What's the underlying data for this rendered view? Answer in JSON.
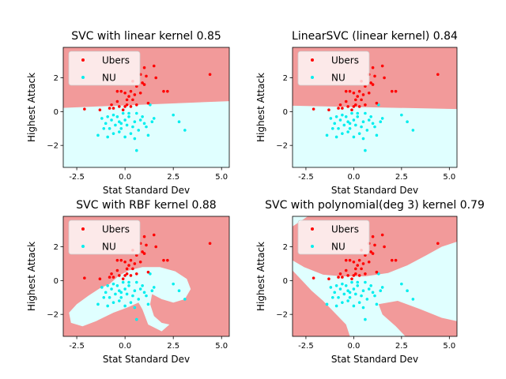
{
  "colors": {
    "ubers_region": "#f29a9a",
    "nu_region": "#e0ffff",
    "ubers_point": "#ff0000",
    "nu_point": "#00eeee"
  },
  "chart_data": [
    {
      "type": "scatter",
      "title": "SVC with linear kernel 0.85",
      "xlabel": "Stat Standard Dev",
      "ylabel": "Highest Attack",
      "xlim": [
        -3.2,
        5.4
      ],
      "ylim": [
        -3.3,
        3.8
      ],
      "xticks": [
        -2.5,
        0.0,
        2.5,
        5.0
      ],
      "yticks": [
        -2,
        0,
        2
      ],
      "legend": [
        "Ubers",
        "NU"
      ],
      "boundary": {
        "kind": "line",
        "y_at_xmin": 0.22,
        "y_at_xmax": 0.62
      }
    },
    {
      "type": "scatter",
      "title": "LinearSVC (linear kernel) 0.84",
      "xlabel": "Stat Standard Dev",
      "ylabel": "Highest Attack",
      "xlim": [
        -3.2,
        5.4
      ],
      "ylim": [
        -3.3,
        3.8
      ],
      "xticks": [
        -2.5,
        0.0,
        2.5,
        5.0
      ],
      "yticks": [
        -2,
        0,
        2
      ],
      "legend": [
        "Ubers",
        "NU"
      ],
      "boundary": {
        "kind": "line",
        "y_at_xmin": 0.35,
        "y_at_xmax": 0.15
      }
    },
    {
      "type": "scatter",
      "title": "SVC with RBF kernel 0.88",
      "xlabel": "Stat Standard Dev",
      "ylabel": "Highest Attack",
      "xlim": [
        -3.2,
        5.4
      ],
      "ylim": [
        -3.3,
        3.8
      ],
      "xticks": [
        -2.5,
        0.0,
        2.5,
        5.0
      ],
      "yticks": [
        -2,
        0,
        2
      ],
      "legend": [
        "Ubers",
        "NU"
      ],
      "boundary": {
        "kind": "rbf"
      }
    },
    {
      "type": "scatter",
      "title": "SVC with polynomial(deg 3) kernel 0.79",
      "xlabel": "Stat Standard Dev",
      "ylabel": "Highest Attack",
      "xlim": [
        -3.2,
        5.4
      ],
      "ylim": [
        -3.3,
        3.8
      ],
      "xticks": [
        -2.5,
        0.0,
        2.5,
        5.0
      ],
      "yticks": [
        -2,
        0,
        2
      ],
      "legend": [
        "Ubers",
        "NU"
      ],
      "boundary": {
        "kind": "poly"
      }
    }
  ],
  "points": {
    "Ubers": [
      [
        4.4,
        2.2
      ],
      [
        1.0,
        2.6
      ],
      [
        1.5,
        2.7
      ],
      [
        0.8,
        2.2
      ],
      [
        1.6,
        2.0
      ],
      [
        0.4,
        1.8
      ],
      [
        2.0,
        1.2
      ],
      [
        2.2,
        1.2
      ],
      [
        1.0,
        1.6
      ],
      [
        -0.4,
        1.2
      ],
      [
        0.0,
        1.1
      ],
      [
        0.3,
        1.2
      ],
      [
        -0.2,
        1.2
      ],
      [
        0.8,
        1.1
      ],
      [
        0.6,
        1.5
      ],
      [
        -1.3,
        0.1
      ],
      [
        -2.1,
        0.15
      ],
      [
        -0.4,
        0.6
      ],
      [
        0.1,
        0.7
      ],
      [
        0.3,
        0.3
      ],
      [
        0.6,
        0.4
      ],
      [
        -0.6,
        0.2
      ],
      [
        -0.1,
        0.1
      ],
      [
        0.9,
        1.7
      ],
      [
        1.2,
        0.5
      ],
      [
        0.2,
        0.9
      ],
      [
        -0.3,
        0.3
      ],
      [
        0.5,
        1.0
      ],
      [
        0.1,
        0.4
      ],
      [
        0.4,
        0.7
      ],
      [
        -0.7,
        0.4
      ],
      [
        1.1,
        2.1
      ],
      [
        -0.8,
        0.2
      ],
      [
        0.0,
        0.3
      ]
    ],
    "NU": [
      [
        3.1,
        -1.1
      ],
      [
        2.5,
        -0.2
      ],
      [
        2.8,
        -0.6
      ],
      [
        1.5,
        -0.4
      ],
      [
        1.3,
        0.4
      ],
      [
        0.6,
        -2.3
      ],
      [
        0.0,
        -1.5
      ],
      [
        -1.4,
        -1.4
      ],
      [
        -0.9,
        -1.5
      ],
      [
        0.3,
        -1.3
      ],
      [
        1.1,
        -0.9
      ],
      [
        1.0,
        -0.7
      ],
      [
        0.9,
        -0.3
      ],
      [
        0.5,
        -0.6
      ],
      [
        0.2,
        -0.3
      ],
      [
        -0.1,
        -0.1
      ],
      [
        -0.3,
        -0.6
      ],
      [
        -0.5,
        -0.8
      ],
      [
        -0.7,
        -0.5
      ],
      [
        -0.6,
        -0.2
      ],
      [
        -1.0,
        -0.7
      ],
      [
        -1.2,
        -0.4
      ],
      [
        -0.8,
        -1.0
      ],
      [
        -0.2,
        -1.0
      ],
      [
        0.4,
        -0.9
      ],
      [
        0.7,
        -1.1
      ],
      [
        -0.4,
        -0.3
      ],
      [
        -0.9,
        -0.3
      ],
      [
        0.0,
        -0.5
      ],
      [
        0.1,
        -0.8
      ],
      [
        -0.3,
        -1.2
      ],
      [
        0.6,
        -0.1
      ],
      [
        1.2,
        -1.4
      ],
      [
        -1.1,
        -1.0
      ],
      [
        0.5,
        -1.6
      ],
      [
        -0.6,
        -1.3
      ],
      [
        1.4,
        -0.6
      ],
      [
        0.2,
        -0.1
      ],
      [
        -0.2,
        -0.7
      ],
      [
        0.8,
        -0.5
      ]
    ]
  }
}
